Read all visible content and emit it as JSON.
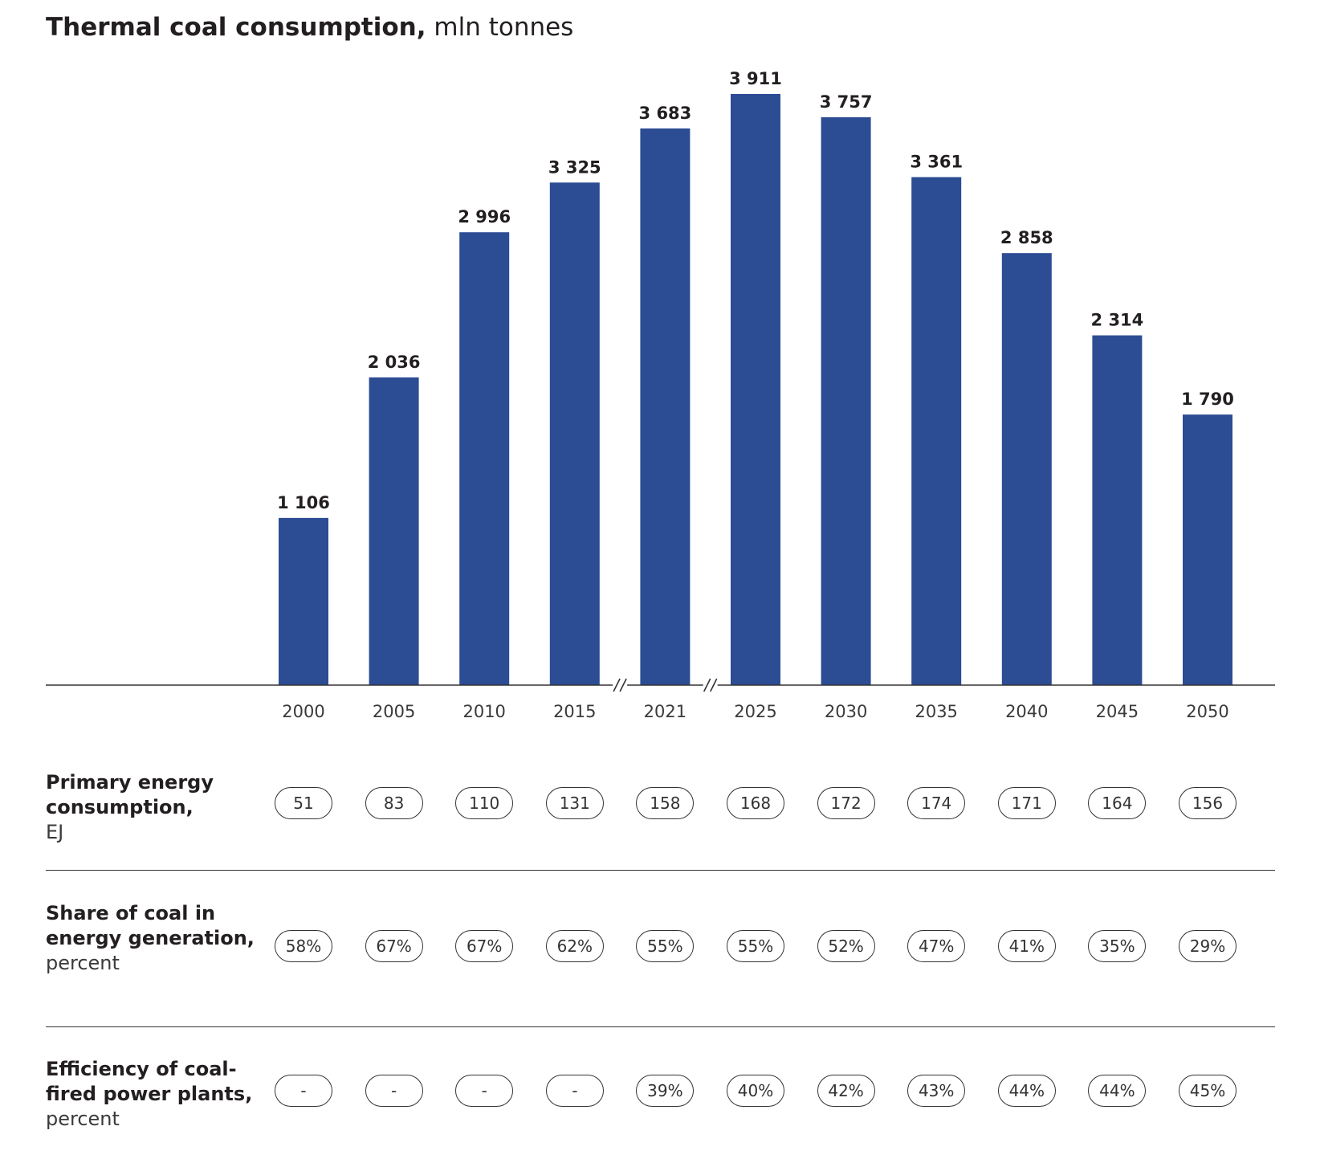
{
  "title": {
    "bold": "Thermal coal consumption,",
    "light": " mln tonnes"
  },
  "colors": {
    "bar": "#2c4c94",
    "axis": "#333333"
  },
  "chart_data": {
    "type": "bar",
    "categories": [
      "2000",
      "2005",
      "2010",
      "2015",
      "2021",
      "2025",
      "2030",
      "2035",
      "2040",
      "2045",
      "2050"
    ],
    "values": [
      1106,
      2036,
      2996,
      3325,
      3683,
      3911,
      3757,
      3361,
      2858,
      2314,
      1790
    ],
    "value_labels": [
      "1 106",
      "2 036",
      "2 996",
      "3 325",
      "3 683",
      "3 911",
      "3 757",
      "3 361",
      "2 858",
      "2 314",
      "1 790"
    ],
    "axis_breaks_after": [
      "2015",
      "2021"
    ],
    "title": "Thermal coal consumption, mln tonnes",
    "ylim": [
      0,
      3911
    ],
    "grid": false
  },
  "rows": [
    {
      "label_bold": "Primary energy consumption,",
      "label_unit": "EJ",
      "values": [
        "51",
        "83",
        "110",
        "131",
        "158",
        "168",
        "172",
        "174",
        "171",
        "164",
        "156"
      ]
    },
    {
      "label_bold": "Share of coal in energy generation,",
      "label_unit": "percent",
      "values": [
        "58%",
        "67%",
        "67%",
        "62%",
        "55%",
        "55%",
        "52%",
        "47%",
        "41%",
        "35%",
        "29%"
      ]
    },
    {
      "label_bold": "Efficiency of coal-fired power plants,",
      "label_unit": "percent",
      "values": [
        "-",
        "-",
        "-",
        "-",
        "39%",
        "40%",
        "42%",
        "43%",
        "44%",
        "44%",
        "45%"
      ]
    }
  ]
}
